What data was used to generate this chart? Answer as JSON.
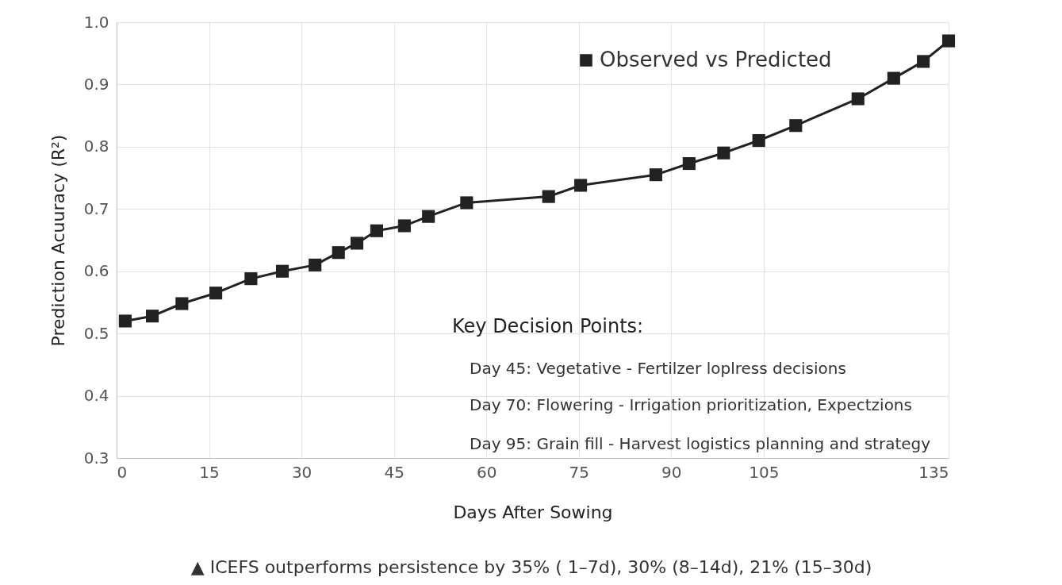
{
  "chart_data": {
    "type": "line",
    "xlabel": "Days After Sowing",
    "ylabel": "Prediction Acuuracy (R²)",
    "xlim": [
      0,
      135
    ],
    "xticks": [
      0,
      15,
      30,
      45,
      60,
      75,
      90,
      105,
      135
    ],
    "ylim": [
      0.3,
      1.0
    ],
    "yticks": [
      0.3,
      0.4,
      0.5,
      0.6,
      0.7,
      0.8,
      0.9,
      {
        "value": 1,
        "label": "1.0"
      }
    ],
    "grid": true,
    "legend": "top right",
    "marker": "square",
    "line_style": "solid",
    "series": [
      {
        "name": "Observed vs Predicted",
        "color": "#222222",
        "x": [
          1.4,
          5.8,
          10.6,
          16.1,
          21.8,
          26.9,
          32.2,
          36.0,
          39.0,
          42.2,
          46.7,
          50.6,
          56.8,
          70.1,
          75.3,
          87.5,
          92.9,
          98.5,
          104.2,
          110.2,
          120.3,
          126.1,
          130.9,
          135
        ],
        "values": [
          0.52,
          0.528,
          0.548,
          0.565,
          0.588,
          0.6,
          0.61,
          0.63,
          0.645,
          0.665,
          0.673,
          0.688,
          0.71,
          0.72,
          0.738,
          0.755,
          0.773,
          0.79,
          0.81,
          0.834,
          0.877,
          0.91,
          0.937,
          0.97
        ]
      }
    ],
    "annotations": [
      "Key Decision Points:",
      "Day 45: Vegetative - Fertilzer loplress decisions",
      "Day 70: Flowering - Irrigation prioritization, Expectzions",
      "Day 95: Grain fill - Harvest logistics planning and strategy",
      "▲ ICEFS outperforms persistence by 35% ( 1–7d), 30% (8–14d), 21% (15–30d)"
    ]
  }
}
